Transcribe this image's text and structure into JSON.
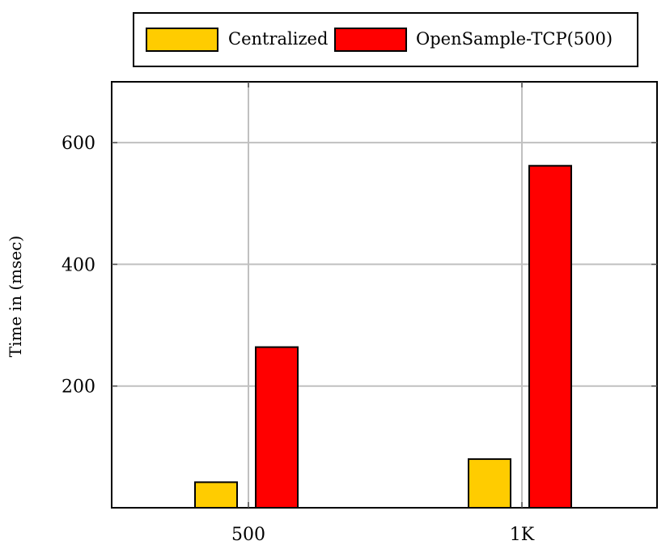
{
  "chart_data": {
    "type": "bar",
    "categories": [
      "500",
      "1K"
    ],
    "series": [
      {
        "name": "Centralized",
        "values": [
          42,
          80
        ],
        "color": "#ffcc00"
      },
      {
        "name": "OpenSample-TCP(500)",
        "values": [
          264,
          562
        ],
        "color": "#ff0000"
      }
    ],
    "title": "",
    "xlabel": "",
    "ylabel": "Time in (msec)",
    "ylim": [
      0,
      700
    ],
    "yticks": [
      200,
      400,
      600
    ],
    "grid": true,
    "legend_position": "top-center"
  }
}
